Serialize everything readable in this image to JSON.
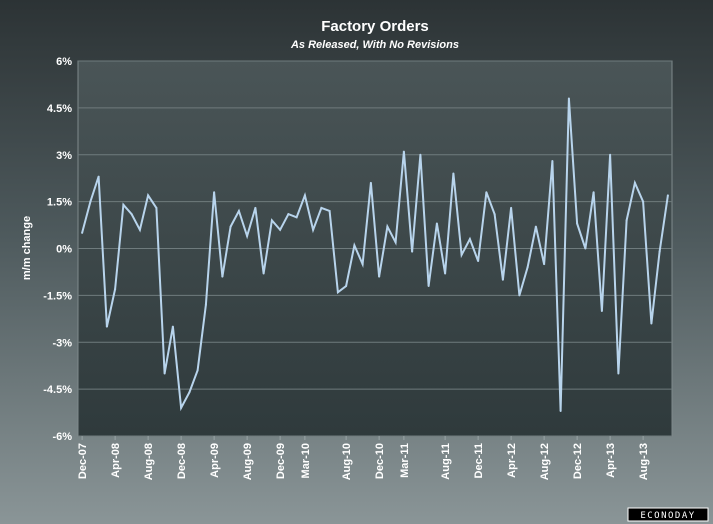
{
  "chart_data": {
    "type": "line",
    "title": "Factory Orders",
    "subtitle": "As Released, With No Revisions",
    "xlabel": "",
    "ylabel": "m/m change",
    "ylim": [
      -6,
      6
    ],
    "yticks": [
      {
        "value": 6,
        "label": "6%"
      },
      {
        "value": 4.5,
        "label": "4.5%"
      },
      {
        "value": 3,
        "label": "3%"
      },
      {
        "value": 1.5,
        "label": "1.5%"
      },
      {
        "value": 0,
        "label": "0%"
      },
      {
        "value": -1.5,
        "label": "-1.5%"
      },
      {
        "value": -3,
        "label": "-3%"
      },
      {
        "value": -4.5,
        "label": "-4.5%"
      },
      {
        "value": -6,
        "label": "-6%"
      }
    ],
    "xtick_labels": [
      {
        "label": "Dec-07",
        "index": 0
      },
      {
        "label": "Apr-08",
        "index": 4
      },
      {
        "label": "Aug-08",
        "index": 8
      },
      {
        "label": "Dec-08",
        "index": 12
      },
      {
        "label": "Apr-09",
        "index": 16
      },
      {
        "label": "Aug-09",
        "index": 20
      },
      {
        "label": "Dec-09",
        "index": 24
      },
      {
        "label": "Mar-10",
        "index": 27
      },
      {
        "label": "Aug-10",
        "index": 32
      },
      {
        "label": "Dec-10",
        "index": 36
      },
      {
        "label": "Mar-11",
        "index": 39
      },
      {
        "label": "Aug-11",
        "index": 44
      },
      {
        "label": "Dec-11",
        "index": 48
      },
      {
        "label": "Apr-12",
        "index": 52
      },
      {
        "label": "Aug-12",
        "index": 56
      },
      {
        "label": "Dec-12",
        "index": 60
      },
      {
        "label": "Apr-13",
        "index": 64
      },
      {
        "label": "Aug-13",
        "index": 68
      }
    ],
    "grid": true,
    "series": [
      {
        "name": "",
        "color": "#b8d4ec",
        "values": [
          0.5,
          1.5,
          2.3,
          -2.5,
          -1.3,
          1.4,
          1.1,
          0.6,
          1.7,
          1.3,
          -4.0,
          -2.5,
          -5.1,
          -4.6,
          -3.9,
          -1.8,
          1.8,
          -0.9,
          0.7,
          1.2,
          0.4,
          1.3,
          -0.8,
          0.9,
          0.6,
          1.1,
          1.0,
          1.7,
          0.6,
          1.3,
          1.2,
          -1.4,
          -1.2,
          0.1,
          -0.5,
          2.1,
          -0.9,
          0.7,
          0.2,
          3.1,
          -0.1,
          3.0,
          -1.2,
          0.8,
          -0.8,
          2.4,
          -0.2,
          0.3,
          -0.4,
          1.8,
          1.1,
          -1.0,
          1.3,
          -1.5,
          -0.6,
          0.7,
          -0.5,
          2.8,
          -5.2,
          4.8,
          0.8,
          0.0,
          1.8,
          -2.0,
          3.0,
          -4.0,
          0.9,
          2.1,
          1.5,
          -2.4,
          -0.1,
          1.7
        ]
      }
    ]
  },
  "brand": {
    "text": "ECONODAY"
  }
}
